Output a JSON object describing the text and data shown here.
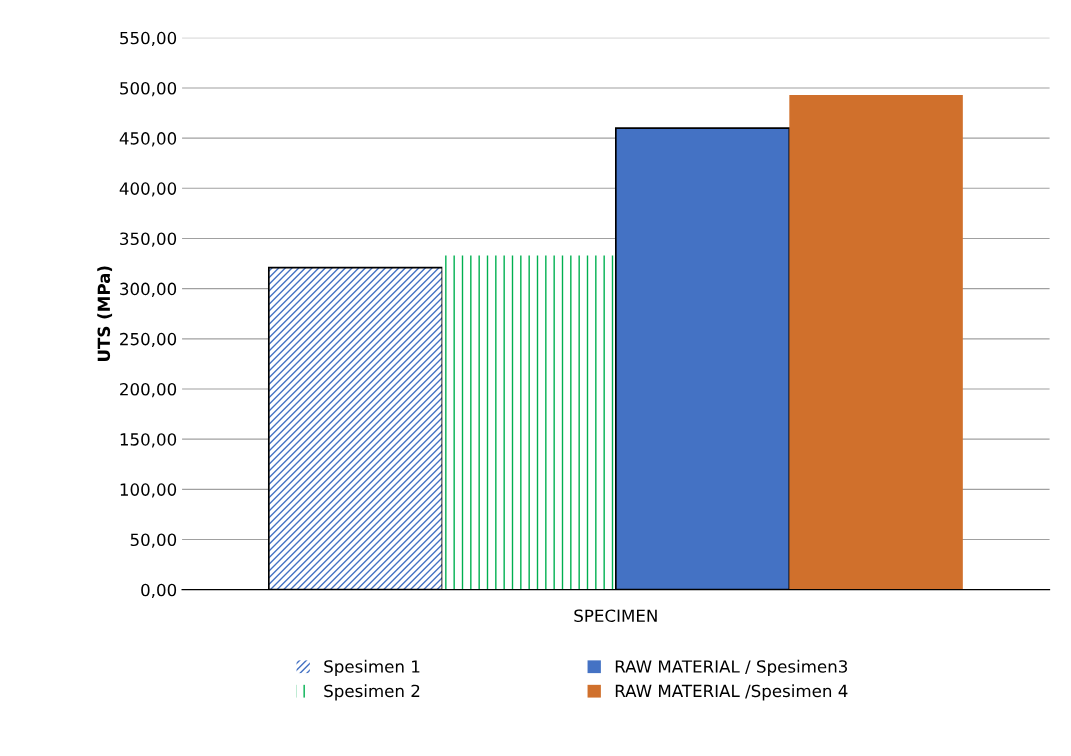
{
  "chart_data": {
    "type": "bar",
    "ylabel": "UTS (MPa)",
    "categories": [
      "SPECIMEN"
    ],
    "series": [
      {
        "name": "Spesimen 1",
        "color": "#4472c4",
        "values": [
          321
        ]
      },
      {
        "name": "Spesimen 2",
        "color": "#00b050",
        "values": [
          333
        ]
      },
      {
        "name": "RAW MATERIAL / Spesimen3",
        "color": "#4472c4",
        "values": [
          460
        ]
      },
      {
        "name": "RAW MATERIAL /Spesimen 4",
        "color": "#d0702c",
        "values": [
          493
        ]
      }
    ],
    "ylim": [
      0,
      550
    ],
    "yticks": [
      {
        "value": 0,
        "label": "0,00"
      },
      {
        "value": 50,
        "label": "50,00"
      },
      {
        "value": 100,
        "label": "100,00"
      },
      {
        "value": 150,
        "label": "150,00"
      },
      {
        "value": 200,
        "label": "200,00"
      },
      {
        "value": 250,
        "label": "250,00"
      },
      {
        "value": 300,
        "label": "300,00"
      },
      {
        "value": 350,
        "label": "350,00"
      },
      {
        "value": 400,
        "label": "400,00"
      },
      {
        "value": 450,
        "label": "450,00"
      },
      {
        "value": 500,
        "label": "500,00"
      },
      {
        "value": 550,
        "label": "550,00"
      }
    ],
    "grid": "y",
    "legend": "bottom"
  }
}
